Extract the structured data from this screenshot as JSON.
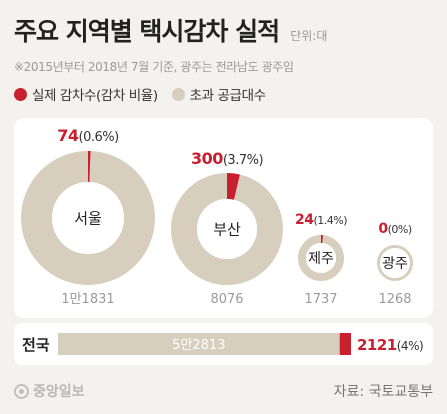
{
  "header": {
    "title": "주요 지역별 택시감차 실적",
    "unit": "단위:대",
    "note": "※2015년부터 2018년 7월 기준, 광주는 전라남도 광주임"
  },
  "legend": [
    {
      "label": "실제 감차수(감차 비율)",
      "color": "#c8202f"
    },
    {
      "label": "초과 공급대수",
      "color": "#d8cebd"
    }
  ],
  "colors": {
    "reduction": "#c8202f",
    "excess": "#d8cebd",
    "label_red": "#c8202f",
    "label_gray": "#9a9a9a"
  },
  "chart_data": {
    "type": "pie",
    "regions": [
      {
        "name": "서울",
        "reduction": 74,
        "reduction_label": "74",
        "ratio_label": "(0.6%)",
        "ratio": 0.006,
        "excess": 11831,
        "excess_label": "1만1831"
      },
      {
        "name": "부산",
        "reduction": 300,
        "reduction_label": "300",
        "ratio_label": "(3.7%)",
        "ratio": 0.037,
        "excess": 8076,
        "excess_label": "8076"
      },
      {
        "name": "제주",
        "reduction": 24,
        "reduction_label": "24",
        "ratio_label": "(1.4%)",
        "ratio": 0.014,
        "excess": 1737,
        "excess_label": "1737"
      },
      {
        "name": "광주",
        "reduction": 0,
        "reduction_label": "0",
        "ratio_label": "(0%)",
        "ratio": 0,
        "excess": 1268,
        "excess_label": "1268"
      }
    ],
    "national": {
      "name": "전국",
      "excess": 52813,
      "excess_label": "5만2813",
      "reduction": 2121,
      "reduction_label": "2121",
      "ratio_label": "(4%)",
      "ratio": 0.04
    }
  },
  "footer": {
    "logo": "중앙일보",
    "source": "자료: 국토교통부"
  }
}
